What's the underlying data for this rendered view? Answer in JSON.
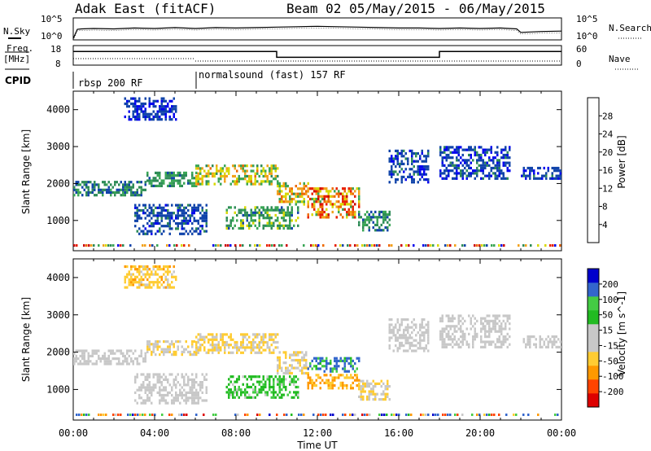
{
  "header": {
    "title": "Adak East (fitACF)",
    "beam_info": "Beam 02 05/May/2015 - 06/May/2015"
  },
  "nsky_panel": {
    "left_label": "N.Sky",
    "right_label": "N.Search",
    "left_ticks": [
      "10^5",
      "10^0"
    ],
    "right_ticks": [
      "10^5",
      "10^0"
    ]
  },
  "freq_panel": {
    "left_label_1": "Freq.",
    "left_label_2": "[MHz]",
    "right_label": "Nave",
    "left_ticks": [
      "18",
      "8"
    ],
    "right_ticks": [
      "60",
      "0"
    ]
  },
  "cpid_panel": {
    "label": "CPID",
    "segments": [
      {
        "start_hour": 0,
        "end_hour": 6,
        "label": "rbsp 200 RF"
      },
      {
        "start_hour": 6,
        "end_hour": 24,
        "label": "normalsound (fast) 157 RF"
      }
    ]
  },
  "colors": {
    "power_scale": [
      "#0000ee",
      "#1144aa",
      "#2e8b57",
      "#3aa655",
      "#d8d800",
      "#f2a21c",
      "#ee6a00",
      "#e82000",
      "#cc0000"
    ],
    "velocity_scale": [
      "#dd0000",
      "#ff4400",
      "#ff9900",
      "#ffcc33",
      "#c8c8c8",
      "#c8c8c8",
      "#22bb22",
      "#44cc44",
      "#3366cc",
      "#0000cc"
    ]
  },
  "chart_data": [
    {
      "type": "line",
      "panel": "nsky",
      "xlabel": "",
      "ylabel": "N.Sky",
      "xlim": [
        0,
        24
      ],
      "ylim_log10": [
        0,
        5
      ],
      "series": [
        {
          "x": [
            0,
            0.2,
            0.4,
            1,
            2,
            3,
            4,
            5,
            6,
            7,
            8,
            9,
            10,
            11,
            12,
            13,
            14,
            15,
            16,
            17,
            18,
            19,
            20,
            21,
            21.8,
            22,
            23,
            24
          ],
          "y_log10": [
            0.3,
            2.4,
            2.5,
            2.6,
            2.5,
            2.7,
            2.6,
            2.8,
            2.6,
            2.8,
            2.7,
            2.8,
            2.9,
            3.0,
            3.1,
            3.0,
            2.9,
            2.8,
            2.7,
            2.7,
            2.6,
            2.7,
            2.6,
            2.7,
            2.5,
            1.7,
            1.9,
            2.0
          ]
        }
      ]
    },
    {
      "type": "line",
      "panel": "freq",
      "ylabel": "Freq. [MHz]",
      "xlim": [
        0,
        24
      ],
      "ylim": [
        8,
        18
      ],
      "y2lim": [
        0,
        60
      ],
      "series": [
        {
          "x": [
            0,
            10,
            10,
            18,
            18,
            24
          ],
          "y": [
            15,
            15,
            12,
            12,
            15,
            15
          ]
        }
      ]
    },
    {
      "type": "heatmap",
      "panel": "power",
      "xlabel": "",
      "ylabel": "Slant Range [km]",
      "xlim": [
        0,
        24
      ],
      "ylim": [
        180,
        4500
      ],
      "y_ticks": [
        "1000",
        "2000",
        "3000",
        "4000"
      ],
      "colorbar_label": "Power [dB]",
      "colorbar_ticks": [
        "4",
        "8",
        "12",
        "16",
        "20",
        "24",
        "28"
      ],
      "vmin": 0,
      "vmax": 32,
      "echo_regions": [
        {
          "t": [
            0,
            3.6
          ],
          "r": [
            1650,
            2050
          ],
          "v": [
            4,
            12
          ]
        },
        {
          "t": [
            3.6,
            6
          ],
          "r": [
            1900,
            2300
          ],
          "v": [
            6,
            14
          ]
        },
        {
          "t": [
            2.5,
            5
          ],
          "r": [
            3700,
            4300
          ],
          "v": [
            2,
            6
          ]
        },
        {
          "t": [
            6,
            10
          ],
          "r": [
            1950,
            2450
          ],
          "v": [
            10,
            22
          ]
        },
        {
          "t": [
            3,
            6.5
          ],
          "r": [
            600,
            1400
          ],
          "v": [
            3,
            8
          ]
        },
        {
          "t": [
            7.5,
            11
          ],
          "r": [
            750,
            1350
          ],
          "v": [
            6,
            16
          ]
        },
        {
          "t": [
            10,
            11.5
          ],
          "r": [
            1400,
            2000
          ],
          "v": [
            10,
            24
          ]
        },
        {
          "t": [
            11.5,
            14
          ],
          "r": [
            1050,
            1850
          ],
          "v": [
            12,
            30
          ]
        },
        {
          "t": [
            14,
            15.5
          ],
          "r": [
            700,
            1200
          ],
          "v": [
            5,
            14
          ]
        },
        {
          "t": [
            15.5,
            17.5
          ],
          "r": [
            2000,
            2900
          ],
          "v": [
            2,
            8
          ]
        },
        {
          "t": [
            18,
            21.5
          ],
          "r": [
            2100,
            3000
          ],
          "v": [
            2,
            8
          ]
        },
        {
          "t": [
            22,
            24
          ],
          "r": [
            2100,
            2400
          ],
          "v": [
            2,
            8
          ]
        }
      ]
    },
    {
      "type": "heatmap",
      "panel": "velocity",
      "xlabel": "Time UT",
      "ylabel": "Slant Range [km]",
      "xlim": [
        0,
        24
      ],
      "ylim": [
        180,
        4500
      ],
      "x_ticks": [
        "00:00",
        "04:00",
        "08:00",
        "12:00",
        "16:00",
        "20:00",
        "00:00"
      ],
      "y_ticks": [
        "1000",
        "2000",
        "3000",
        "4000"
      ],
      "colorbar_label": "Velocity [m s^-1]",
      "colorbar_ticks": [
        "200",
        "100",
        "50",
        "15",
        "-15",
        "-50",
        "-100",
        "-200"
      ],
      "vmin": -250,
      "vmax": 250,
      "echo_regions": [
        {
          "t": [
            0,
            3.6
          ],
          "r": [
            1650,
            2050
          ],
          "v": [
            -15,
            15
          ]
        },
        {
          "t": [
            3.6,
            6
          ],
          "r": [
            1900,
            2300
          ],
          "v": [
            -30,
            10
          ]
        },
        {
          "t": [
            2.5,
            5
          ],
          "r": [
            3700,
            4300
          ],
          "v": [
            -60,
            -10
          ]
        },
        {
          "t": [
            6,
            10
          ],
          "r": [
            1950,
            2450
          ],
          "v": [
            -50,
            10
          ]
        },
        {
          "t": [
            3,
            6.5
          ],
          "r": [
            600,
            1400
          ],
          "v": [
            -15,
            15
          ]
        },
        {
          "t": [
            7.5,
            11
          ],
          "r": [
            750,
            1350
          ],
          "v": [
            10,
            60
          ]
        },
        {
          "t": [
            10,
            11.5
          ],
          "r": [
            1400,
            2000
          ],
          "v": [
            -40,
            10
          ]
        },
        {
          "t": [
            11.5,
            14
          ],
          "r": [
            1450,
            1850
          ],
          "v": [
            40,
            200
          ]
        },
        {
          "t": [
            11.5,
            14
          ],
          "r": [
            1000,
            1400
          ],
          "v": [
            -80,
            -20
          ]
        },
        {
          "t": [
            14,
            15.5
          ],
          "r": [
            700,
            1200
          ],
          "v": [
            -30,
            10
          ]
        },
        {
          "t": [
            15.5,
            17.5
          ],
          "r": [
            2000,
            2900
          ],
          "v": [
            -15,
            15
          ]
        },
        {
          "t": [
            18,
            21.5
          ],
          "r": [
            2100,
            3000
          ],
          "v": [
            -15,
            15
          ]
        },
        {
          "t": [
            22,
            24
          ],
          "r": [
            2100,
            2400
          ],
          "v": [
            -15,
            15
          ]
        }
      ]
    }
  ]
}
